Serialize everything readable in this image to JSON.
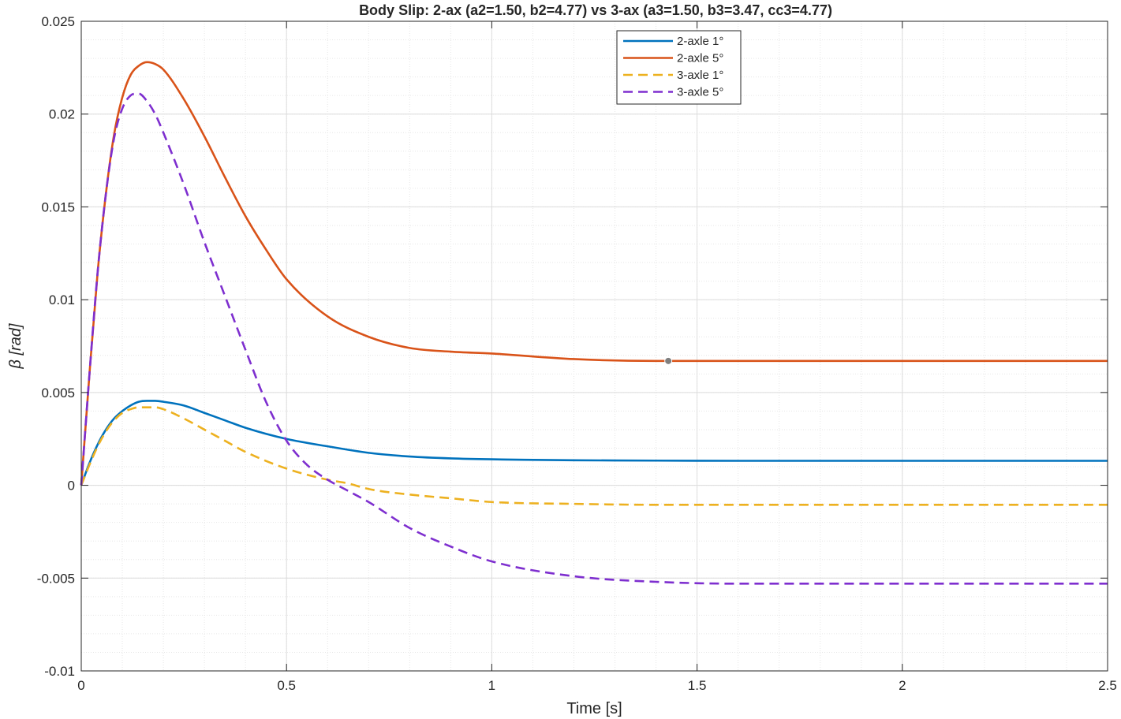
{
  "chart_data": {
    "type": "line",
    "title": "Body Slip: 2-ax (a2=1.50, b2=4.77) vs 3-ax (a3=1.50, b3=3.47, cc3=4.77)",
    "xlabel": "Time [s]",
    "ylabel": "β  [rad]",
    "xlim": [
      0,
      2.5
    ],
    "ylim": [
      -0.01,
      0.025
    ],
    "x_ticks": [
      0,
      0.5,
      1,
      1.5,
      2,
      2.5
    ],
    "x_tick_labels": [
      "0",
      "0.5",
      "1",
      "1.5",
      "2",
      "2.5"
    ],
    "y_ticks": [
      -0.01,
      -0.005,
      0,
      0.005,
      0.01,
      0.015,
      0.02,
      0.025
    ],
    "y_tick_labels": [
      "-0.01",
      "-0.005",
      "0",
      "0.005",
      "0.01",
      "0.015",
      "0.02",
      "0.025"
    ],
    "grid": true,
    "minor_grid": true,
    "legend_position": "top-center",
    "series": [
      {
        "name": "2-axle 1°",
        "color": "#0072BD",
        "dashed": false,
        "x": [
          0,
          0.02,
          0.04,
          0.06,
          0.08,
          0.1,
          0.12,
          0.14,
          0.16,
          0.18,
          0.2,
          0.25,
          0.3,
          0.35,
          0.4,
          0.5,
          0.6,
          0.7,
          0.8,
          0.9,
          1.0,
          1.2,
          1.4,
          1.6,
          1.8,
          2.0,
          2.2,
          2.5
        ],
        "y": [
          0,
          0.0012,
          0.0022,
          0.003,
          0.0036,
          0.004,
          0.0043,
          0.0045,
          0.00455,
          0.00455,
          0.0045,
          0.0043,
          0.0039,
          0.0035,
          0.0031,
          0.0025,
          0.0021,
          0.00175,
          0.00155,
          0.00145,
          0.0014,
          0.00135,
          0.00133,
          0.00132,
          0.00132,
          0.00132,
          0.00132,
          0.00132
        ]
      },
      {
        "name": "2-axle 5°",
        "color": "#D95319",
        "dashed": false,
        "x": [
          0,
          0.02,
          0.04,
          0.06,
          0.08,
          0.1,
          0.12,
          0.14,
          0.16,
          0.18,
          0.2,
          0.25,
          0.3,
          0.35,
          0.4,
          0.45,
          0.5,
          0.6,
          0.7,
          0.8,
          0.9,
          1.0,
          1.2,
          1.4,
          1.6,
          1.8,
          2.0,
          2.2,
          2.5
        ],
        "y": [
          0,
          0.006,
          0.0115,
          0.0157,
          0.0189,
          0.0209,
          0.0221,
          0.0226,
          0.0228,
          0.0227,
          0.0224,
          0.0208,
          0.0188,
          0.0166,
          0.0145,
          0.0127,
          0.0111,
          0.0091,
          0.008,
          0.0074,
          0.0072,
          0.0071,
          0.0068,
          0.0067,
          0.0067,
          0.0067,
          0.0067,
          0.0067,
          0.0067
        ]
      },
      {
        "name": "3-axle 1°",
        "color": "#EDB120",
        "dashed": true,
        "x": [
          0,
          0.02,
          0.04,
          0.06,
          0.08,
          0.1,
          0.12,
          0.14,
          0.16,
          0.18,
          0.2,
          0.25,
          0.3,
          0.35,
          0.4,
          0.5,
          0.6,
          0.65,
          0.7,
          0.8,
          0.9,
          1.0,
          1.2,
          1.4,
          1.6,
          1.8,
          2.0,
          2.2,
          2.5
        ],
        "y": [
          0,
          0.0011,
          0.0021,
          0.0029,
          0.0035,
          0.0039,
          0.0041,
          0.0042,
          0.0042,
          0.0042,
          0.0041,
          0.0036,
          0.003,
          0.0024,
          0.0018,
          0.0009,
          0.0003,
          0.0001,
          -0.0002,
          -0.0005,
          -0.0007,
          -0.0009,
          -0.001,
          -0.00105,
          -0.00105,
          -0.00105,
          -0.00105,
          -0.00105,
          -0.00105
        ]
      },
      {
        "name": "3-axle 5°",
        "color": "#7E2FCF",
        "dashed": true,
        "x": [
          0,
          0.02,
          0.04,
          0.06,
          0.08,
          0.1,
          0.12,
          0.14,
          0.16,
          0.18,
          0.2,
          0.25,
          0.3,
          0.35,
          0.4,
          0.45,
          0.5,
          0.55,
          0.6,
          0.65,
          0.7,
          0.8,
          0.9,
          1.0,
          1.2,
          1.4,
          1.6,
          1.8,
          2.0,
          2.2,
          2.5
        ],
        "y": [
          0,
          0.006,
          0.0115,
          0.0157,
          0.0187,
          0.0203,
          0.021,
          0.0211,
          0.0207,
          0.02,
          0.019,
          0.0162,
          0.0131,
          0.0102,
          0.0073,
          0.0045,
          0.0024,
          0.0011,
          0.0003,
          -0.0003,
          -0.0009,
          -0.0023,
          -0.0033,
          -0.0041,
          -0.0049,
          -0.0052,
          -0.0053,
          -0.0053,
          -0.0053,
          -0.0053,
          -0.0053
        ]
      }
    ],
    "marker": {
      "x": 1.43,
      "y": 0.0067,
      "color": "#7F7F7F"
    }
  }
}
